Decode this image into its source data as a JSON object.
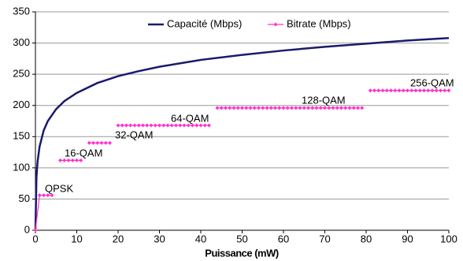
{
  "chart_data": {
    "type": "line",
    "xlabel": "Puissance (mW)",
    "xlim": [
      0,
      100
    ],
    "xticks": [
      0,
      10,
      20,
      30,
      40,
      50,
      60,
      70,
      80,
      90,
      100
    ],
    "ylim": [
      0,
      350
    ],
    "yticks": [
      0,
      50,
      100,
      150,
      200,
      250,
      300,
      350
    ],
    "grid": true,
    "legend": "top",
    "annotations": [
      "QPSK",
      "16-QAM",
      "32-QAM",
      "64-QAM",
      "128-QAM",
      "256-QAM"
    ],
    "series": [
      {
        "name": "Capacité (Mbps)",
        "color": "#1a1a6e",
        "marker": false,
        "x": [
          0,
          0.25,
          0.5,
          1,
          2,
          3,
          5,
          7,
          10,
          15,
          20,
          25,
          30,
          40,
          50,
          60,
          70,
          80,
          90,
          100
        ],
        "values": [
          0,
          85,
          109,
          134,
          160,
          175,
          194,
          207,
          220,
          236,
          247,
          255,
          262,
          273,
          281,
          288,
          294,
          299,
          304,
          308
        ]
      },
      {
        "name": "Bitrate (Mbps)",
        "color": "#ff33cc",
        "marker": true,
        "x": [
          0,
          1,
          2,
          3,
          4,
          5,
          6,
          7,
          8,
          9,
          10,
          11,
          12,
          13,
          14,
          15,
          16,
          17,
          18,
          19,
          20,
          21,
          22,
          23,
          24,
          25,
          26,
          27,
          28,
          29,
          30,
          31,
          32,
          33,
          34,
          35,
          36,
          37,
          38,
          39,
          40,
          41,
          42,
          43,
          44,
          45,
          46,
          47,
          48,
          49,
          50,
          51,
          52,
          53,
          54,
          55,
          56,
          57,
          58,
          59,
          60,
          61,
          62,
          63,
          64,
          65,
          66,
          67,
          68,
          69,
          70,
          71,
          72,
          73,
          74,
          75,
          76,
          77,
          78,
          79,
          80,
          81,
          82,
          83,
          84,
          85,
          86,
          87,
          88,
          89,
          90,
          91,
          92,
          93,
          94,
          95,
          96,
          97,
          98,
          99,
          100
        ],
        "values": [
          0,
          56,
          56,
          56,
          56,
          null,
          112,
          112,
          112,
          112,
          112,
          112,
          null,
          140,
          140,
          140,
          140,
          140,
          140,
          null,
          168,
          168,
          168,
          168,
          168,
          168,
          168,
          168,
          168,
          168,
          168,
          168,
          168,
          168,
          168,
          168,
          168,
          168,
          168,
          168,
          168,
          168,
          168,
          null,
          196,
          196,
          196,
          196,
          196,
          196,
          196,
          196,
          196,
          196,
          196,
          196,
          196,
          196,
          196,
          196,
          196,
          196,
          196,
          196,
          196,
          196,
          196,
          196,
          196,
          196,
          196,
          196,
          196,
          196,
          196,
          196,
          196,
          196,
          196,
          196,
          null,
          224,
          224,
          224,
          224,
          224,
          224,
          224,
          224,
          224,
          224,
          224,
          224,
          224,
          224,
          224,
          224,
          224,
          224,
          224,
          224
        ]
      }
    ]
  }
}
